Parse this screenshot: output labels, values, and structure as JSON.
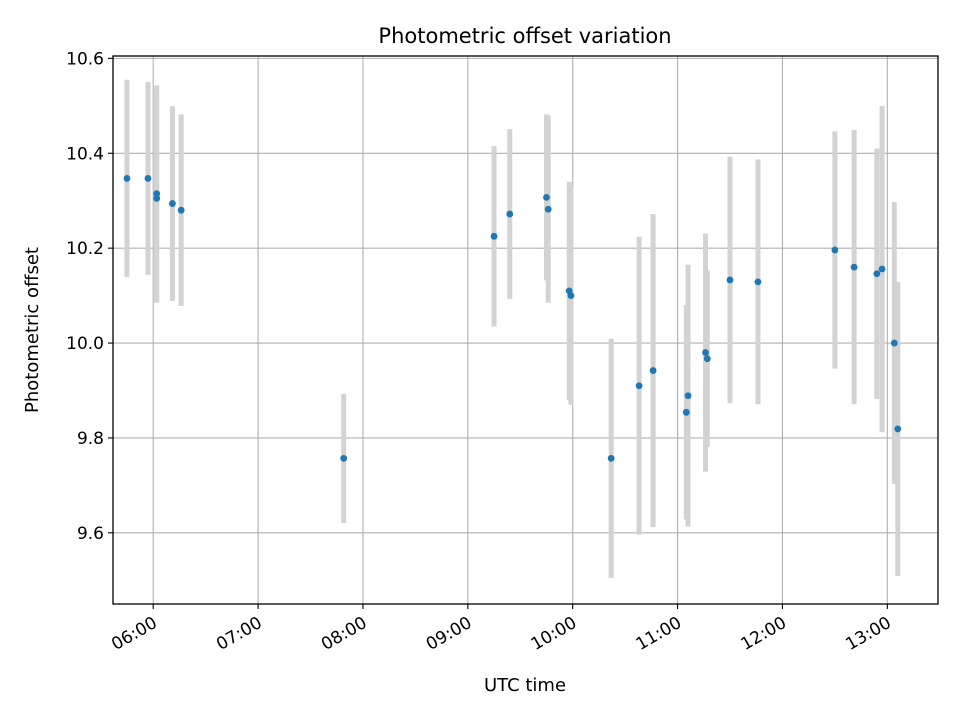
{
  "chart_data": {
    "type": "scatter",
    "title": "Photometric offset variation",
    "xlabel": "UTC time",
    "ylabel": "Photometric offset",
    "x_axis_kind": "time",
    "xlim": [
      "05:37",
      "13:29"
    ],
    "ylim": [
      9.45,
      10.605
    ],
    "x_ticks": [
      "06:00",
      "07:00",
      "08:00",
      "09:00",
      "10:00",
      "11:00",
      "12:00",
      "13:00"
    ],
    "y_ticks": [
      "9.6",
      "9.8",
      "10.0",
      "10.2",
      "10.4",
      "10.6"
    ],
    "grid": true,
    "marker_color": "#1f77b4",
    "errorbar_color": "#d3d3d3",
    "series": [
      {
        "points": [
          {
            "x": "05:45",
            "y": 10.347,
            "err": 0.208
          },
          {
            "x": "05:57",
            "y": 10.347,
            "err": 0.203
          },
          {
            "x": "06:02",
            "y": 10.315,
            "err": 0.228
          },
          {
            "x": "06:02",
            "y": 10.305,
            "err": 0.22
          },
          {
            "x": "06:11",
            "y": 10.294,
            "err": 0.205
          },
          {
            "x": "06:16",
            "y": 10.28,
            "err": 0.202
          },
          {
            "x": "07:49",
            "y": 9.757,
            "err": 0.136
          },
          {
            "x": "09:15",
            "y": 10.225,
            "err": 0.19
          },
          {
            "x": "09:24",
            "y": 10.272,
            "err": 0.179
          },
          {
            "x": "09:45",
            "y": 10.307,
            "err": 0.175
          },
          {
            "x": "09:46",
            "y": 10.282,
            "err": 0.197
          },
          {
            "x": "09:58",
            "y": 10.11,
            "err": 0.23
          },
          {
            "x": "09:59",
            "y": 10.1,
            "err": 0.23
          },
          {
            "x": "10:22",
            "y": 9.757,
            "err": 0.252
          },
          {
            "x": "10:38",
            "y": 9.91,
            "err": 0.314
          },
          {
            "x": "10:46",
            "y": 9.942,
            "err": 0.33
          },
          {
            "x": "11:05",
            "y": 9.854,
            "err": 0.226
          },
          {
            "x": "11:06",
            "y": 9.889,
            "err": 0.276
          },
          {
            "x": "11:16",
            "y": 9.98,
            "err": 0.251
          },
          {
            "x": "11:17",
            "y": 9.967,
            "err": 0.186
          },
          {
            "x": "11:30",
            "y": 10.133,
            "err": 0.26
          },
          {
            "x": "11:46",
            "y": 10.129,
            "err": 0.258
          },
          {
            "x": "12:30",
            "y": 10.196,
            "err": 0.25
          },
          {
            "x": "12:41",
            "y": 10.16,
            "err": 0.289
          },
          {
            "x": "12:54",
            "y": 10.146,
            "err": 0.264
          },
          {
            "x": "12:57",
            "y": 10.156,
            "err": 0.344
          },
          {
            "x": "13:04",
            "y": 10.0,
            "err": 0.297
          },
          {
            "x": "13:06",
            "y": 9.819,
            "err": 0.31
          }
        ]
      }
    ]
  }
}
